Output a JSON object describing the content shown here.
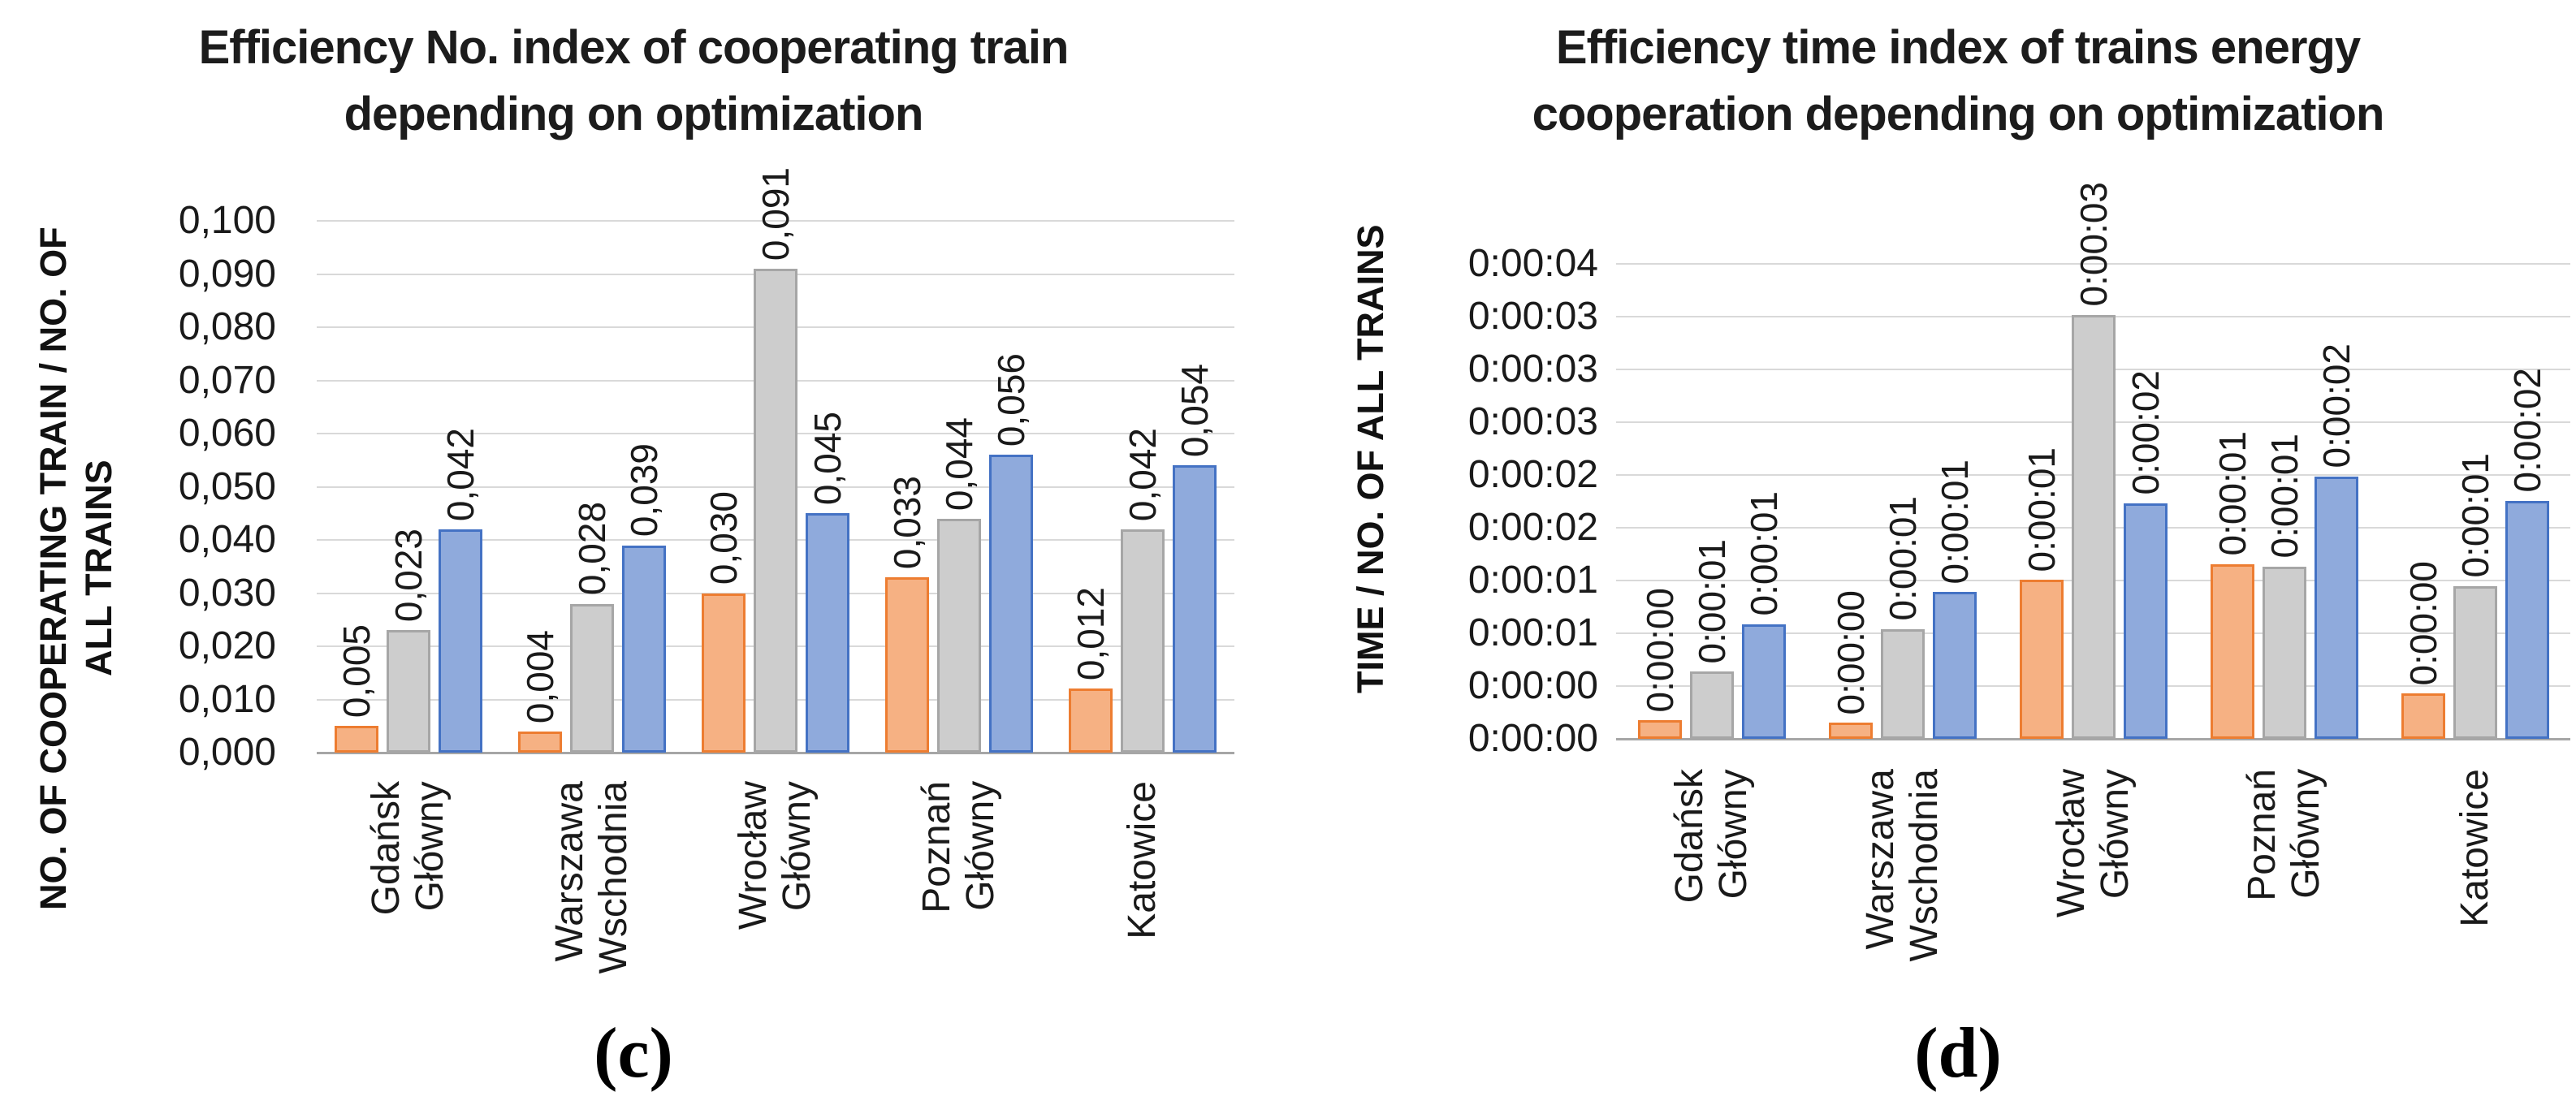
{
  "figure": {
    "background": "#ffffff",
    "panel_count": 2
  },
  "chart_data": [
    {
      "panel": "c",
      "type": "bar",
      "title_lines": [
        "Efficiency No. index of cooperating train",
        "depending on optimization"
      ],
      "y_axis_title_lines": [
        "NO. OF COOPERATING TRAIN / NO. OF",
        "ALL TRAINS"
      ],
      "caption": "(c)",
      "decimal_style": "comma",
      "grid": true,
      "legend": "none",
      "ylim": [
        0,
        0.1
      ],
      "y_ticks": [
        {
          "label": "0,000",
          "value": 0
        },
        {
          "label": "0,010",
          "value": 0.01
        },
        {
          "label": "0,020",
          "value": 0.02
        },
        {
          "label": "0,030",
          "value": 0.03
        },
        {
          "label": "0,040",
          "value": 0.04
        },
        {
          "label": "0,050",
          "value": 0.05
        },
        {
          "label": "0,060",
          "value": 0.06
        },
        {
          "label": "0,070",
          "value": 0.07
        },
        {
          "label": "0,080",
          "value": 0.08
        },
        {
          "label": "0,090",
          "value": 0.09
        },
        {
          "label": "0,100",
          "value": 0.1
        }
      ],
      "categories": [
        [
          "Gdańsk",
          "Główny"
        ],
        [
          "Warszawa",
          "Wschodnia"
        ],
        [
          "Wrocław",
          "Główny"
        ],
        [
          "Poznań",
          "Główny"
        ],
        [
          "Katowice"
        ]
      ],
      "series": [
        {
          "name": "series-1-orange",
          "fill": "#F6B183",
          "border": "#ED7D31",
          "values": [
            0.005,
            0.004,
            0.03,
            0.033,
            0.012
          ],
          "data_labels": [
            "0,005",
            "0,004",
            "0,030",
            "0,033",
            "0,012"
          ]
        },
        {
          "name": "series-2-gray",
          "fill": "#CDCDCD",
          "border": "#A6A6A6",
          "values": [
            0.023,
            0.028,
            0.091,
            0.044,
            0.042
          ],
          "data_labels": [
            "0,023",
            "0,028",
            "0,091",
            "0,044",
            "0,042"
          ]
        },
        {
          "name": "series-3-blue",
          "fill": "#8FAADC",
          "border": "#4472C4",
          "values": [
            0.042,
            0.039,
            0.045,
            0.056,
            0.054
          ],
          "data_labels": [
            "0,042",
            "0,039",
            "0,045",
            "0,056",
            "0,054"
          ]
        }
      ],
      "gridline_color": "#D9D9D9",
      "axis_line_color": "#A6A6A6"
    },
    {
      "panel": "d",
      "type": "bar",
      "title_lines": [
        "Efficiency time index of trains energy",
        "cooperation depending on optimization"
      ],
      "y_axis_title_lines": [
        "TIME / NO. OF ALL TRAINS"
      ],
      "caption": "(d)",
      "value_format": "h:mm:ss",
      "grid": true,
      "legend": "none",
      "ylim": [
        0,
        3.888
      ],
      "y_ticks": [
        {
          "label": "0:00:00",
          "value": 0
        },
        {
          "label": "0:00:00",
          "value": 0.432
        },
        {
          "label": "0:00:01",
          "value": 0.864
        },
        {
          "label": "0:00:01",
          "value": 1.296
        },
        {
          "label": "0:00:02",
          "value": 1.728
        },
        {
          "label": "0:00:02",
          "value": 2.16
        },
        {
          "label": "0:00:03",
          "value": 2.592
        },
        {
          "label": "0:00:03",
          "value": 3.024
        },
        {
          "label": "0:00:03",
          "value": 3.456
        },
        {
          "label": "0:00:04",
          "value": 3.888
        }
      ],
      "categories": [
        [
          "Gdańsk",
          "Główny"
        ],
        [
          "Warszawa",
          "Wschodnia"
        ],
        [
          "Wrocław",
          "Główny"
        ],
        [
          "Poznań",
          "Główny"
        ],
        [
          "Katowice"
        ]
      ],
      "series": [
        {
          "name": "series-1-orange",
          "fill": "#F6B183",
          "border": "#ED7D31",
          "values": [
            0.15,
            0.13,
            1.3,
            1.43,
            0.37
          ],
          "data_labels": [
            "0:00:00",
            "0:00:00",
            "0:00:01",
            "0:00:01",
            "0:00:00"
          ]
        },
        {
          "name": "series-2-gray",
          "fill": "#CDCDCD",
          "border": "#A6A6A6",
          "values": [
            0.55,
            0.9,
            3.47,
            1.41,
            1.25
          ],
          "data_labels": [
            "0:00:01",
            "0:00:01",
            "0:00:03",
            "0:00:01",
            "0:00:01"
          ]
        },
        {
          "name": "series-3-blue",
          "fill": "#8FAADC",
          "border": "#4472C4",
          "values": [
            0.94,
            1.2,
            1.93,
            2.15,
            1.95
          ],
          "data_labels": [
            "0:00:01",
            "0:00:01",
            "0:00:02",
            "0:00:02",
            "0:00:02"
          ]
        }
      ],
      "gridline_color": "#D9D9D9",
      "axis_line_color": "#A6A6A6"
    }
  ]
}
